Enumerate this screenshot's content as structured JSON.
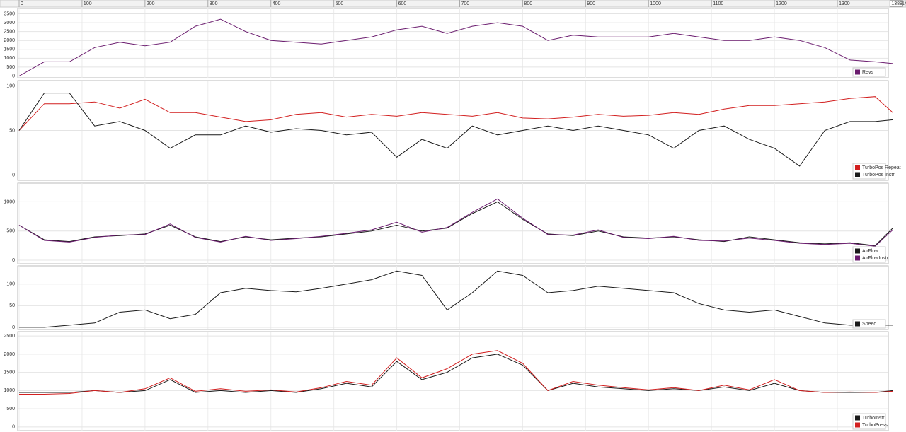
{
  "ruler": {
    "xlim": [
      0,
      1400
    ],
    "xticks": [
      0,
      100,
      200,
      300,
      400,
      500,
      600,
      700,
      800,
      900,
      1000,
      1100,
      1200,
      1300,
      1400
    ],
    "end": 1388
  },
  "chart_data": [
    {
      "type": "line",
      "grid": true,
      "legend": "bottom-right",
      "xlim": [
        0,
        1400
      ],
      "ylim": [
        -100,
        3800
      ],
      "yticks": [
        0,
        500,
        1000,
        1500,
        2000,
        2500,
        3000,
        3500
      ],
      "x": [
        0,
        40,
        80,
        120,
        160,
        200,
        240,
        280,
        320,
        360,
        400,
        440,
        480,
        520,
        560,
        600,
        640,
        680,
        720,
        760,
        800,
        840,
        880,
        920,
        960,
        1000,
        1040,
        1080,
        1120,
        1160,
        1200,
        1240,
        1280,
        1320,
        1360,
        1388
      ],
      "series": [
        {
          "name": "Revs",
          "color": "#6a1b6e",
          "values": [
            0,
            800,
            800,
            1600,
            1900,
            1700,
            1900,
            2800,
            3200,
            2500,
            2000,
            1900,
            1800,
            2000,
            2200,
            2600,
            2800,
            2400,
            2800,
            3000,
            2800,
            2000,
            2300,
            2200,
            2200,
            2200,
            2400,
            2200,
            2000,
            2000,
            2200,
            2000,
            1600,
            900,
            800,
            700
          ]
        }
      ]
    },
    {
      "type": "line",
      "grid": true,
      "legend": "bottom-right",
      "xlim": [
        0,
        1400
      ],
      "ylim": [
        -6,
        106
      ],
      "yticks": [
        0,
        50,
        100
      ],
      "x": [
        0,
        40,
        80,
        120,
        160,
        200,
        240,
        280,
        320,
        360,
        400,
        440,
        480,
        520,
        560,
        600,
        640,
        680,
        720,
        760,
        800,
        840,
        880,
        920,
        960,
        1000,
        1040,
        1080,
        1120,
        1160,
        1200,
        1240,
        1280,
        1320,
        1360,
        1388
      ],
      "series": [
        {
          "name": "TurboPos Repeat",
          "color": "#d21f1f",
          "values": [
            50,
            80,
            80,
            82,
            75,
            85,
            70,
            70,
            65,
            60,
            62,
            68,
            70,
            65,
            68,
            66,
            70,
            68,
            66,
            70,
            64,
            63,
            65,
            68,
            66,
            67,
            70,
            68,
            74,
            78,
            78,
            80,
            82,
            86,
            88,
            70
          ]
        },
        {
          "name": "TurboPos Instr",
          "color": "#1a1a1a",
          "values": [
            50,
            92,
            92,
            55,
            60,
            50,
            30,
            45,
            45,
            55,
            48,
            52,
            50,
            45,
            48,
            20,
            40,
            30,
            55,
            45,
            50,
            55,
            50,
            55,
            50,
            45,
            30,
            50,
            55,
            40,
            30,
            10,
            50,
            60,
            60,
            62
          ]
        }
      ]
    },
    {
      "type": "line",
      "grid": true,
      "legend": "bottom-right",
      "xlim": [
        0,
        1400
      ],
      "ylim": [
        -60,
        1320
      ],
      "yticks": [
        0,
        500,
        1000
      ],
      "x": [
        0,
        40,
        80,
        120,
        160,
        200,
        240,
        280,
        320,
        360,
        400,
        440,
        480,
        520,
        560,
        600,
        640,
        680,
        720,
        760,
        800,
        840,
        880,
        920,
        960,
        1000,
        1040,
        1080,
        1120,
        1160,
        1200,
        1240,
        1280,
        1320,
        1360,
        1388
      ],
      "series": [
        {
          "name": "AirFlow",
          "color": "#1a1a1a",
          "values": [
            600,
            350,
            320,
            400,
            420,
            450,
            600,
            400,
            320,
            400,
            350,
            380,
            400,
            450,
            500,
            600,
            500,
            550,
            800,
            1000,
            700,
            450,
            420,
            500,
            400,
            380,
            400,
            350,
            320,
            400,
            350,
            300,
            280,
            300,
            250,
            550
          ]
        },
        {
          "name": "AirFlowInstr",
          "color": "#6a1b6e",
          "values": [
            600,
            340,
            310,
            390,
            430,
            440,
            620,
            390,
            310,
            410,
            340,
            370,
            410,
            460,
            520,
            650,
            480,
            560,
            820,
            1050,
            720,
            440,
            430,
            520,
            390,
            370,
            410,
            340,
            330,
            380,
            340,
            290,
            270,
            290,
            240,
            520
          ]
        }
      ]
    },
    {
      "type": "line",
      "grid": true,
      "legend": "bottom-right",
      "xlim": [
        0,
        1400
      ],
      "ylim": [
        -5,
        142
      ],
      "yticks": [
        0,
        50,
        100
      ],
      "x": [
        0,
        40,
        80,
        120,
        160,
        200,
        240,
        280,
        320,
        360,
        400,
        440,
        480,
        520,
        560,
        600,
        640,
        680,
        720,
        760,
        800,
        840,
        880,
        920,
        960,
        1000,
        1040,
        1080,
        1120,
        1160,
        1200,
        1240,
        1280,
        1320,
        1360,
        1388
      ],
      "series": [
        {
          "name": "Speed",
          "color": "#1a1a1a",
          "values": [
            0,
            0,
            5,
            10,
            35,
            40,
            20,
            30,
            80,
            90,
            85,
            82,
            90,
            100,
            110,
            130,
            120,
            40,
            80,
            130,
            120,
            80,
            85,
            95,
            90,
            85,
            80,
            55,
            40,
            35,
            40,
            25,
            10,
            5,
            5,
            5
          ]
        }
      ]
    },
    {
      "type": "line",
      "grid": true,
      "legend": "bottom-right",
      "xlim": [
        0,
        1400
      ],
      "ylim": [
        -100,
        2620
      ],
      "yticks": [
        0,
        500,
        1000,
        1500,
        2000,
        2500
      ],
      "x": [
        0,
        40,
        80,
        120,
        160,
        200,
        240,
        280,
        320,
        360,
        400,
        440,
        480,
        520,
        560,
        600,
        640,
        680,
        720,
        760,
        800,
        840,
        880,
        920,
        960,
        1000,
        1040,
        1080,
        1120,
        1160,
        1200,
        1240,
        1280,
        1320,
        1360,
        1388
      ],
      "series": [
        {
          "name": "TurboInstr",
          "color": "#1a1a1a",
          "values": [
            950,
            950,
            950,
            1000,
            950,
            1000,
            1300,
            950,
            1000,
            950,
            1000,
            950,
            1050,
            1200,
            1100,
            1800,
            1300,
            1500,
            1900,
            2000,
            1700,
            1000,
            1200,
            1100,
            1050,
            1000,
            1050,
            1000,
            1100,
            1000,
            1200,
            1000,
            950,
            950,
            950,
            1000
          ]
        },
        {
          "name": "TurboPress",
          "color": "#d21f1f",
          "values": [
            900,
            900,
            920,
            1000,
            950,
            1050,
            1350,
            980,
            1050,
            980,
            1020,
            960,
            1080,
            1250,
            1150,
            1900,
            1350,
            1600,
            2000,
            2100,
            1750,
            1000,
            1250,
            1150,
            1080,
            1020,
            1080,
            1000,
            1150,
            1020,
            1300,
            1000,
            950,
            960,
            950,
            980
          ]
        }
      ]
    }
  ]
}
